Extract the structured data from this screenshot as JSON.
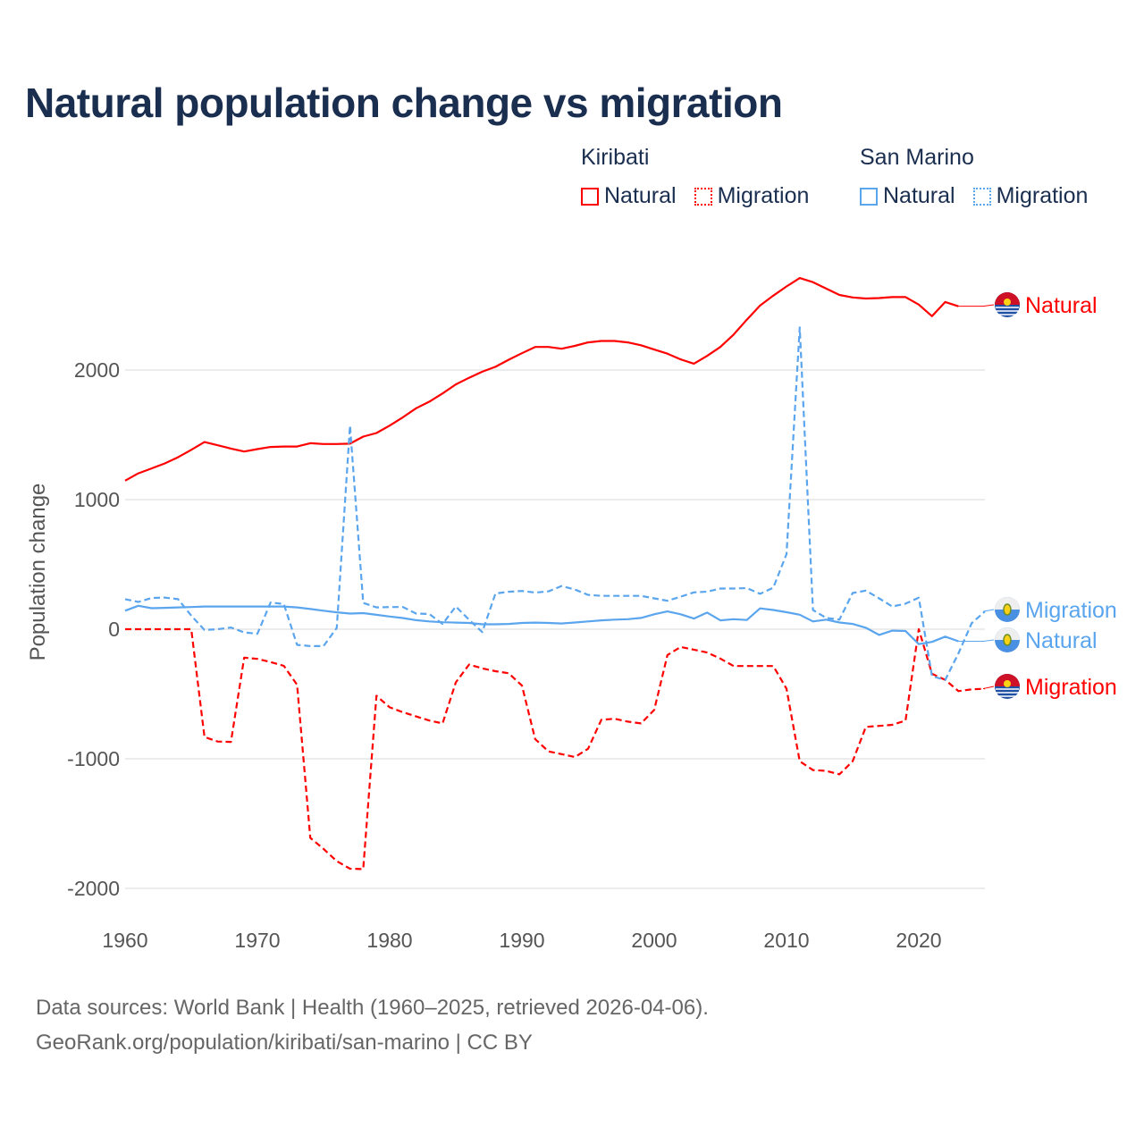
{
  "title": "Natural population change vs migration",
  "legend": {
    "groups": [
      {
        "name": "Kiribati",
        "items": [
          {
            "label": "Natural",
            "style": "solid",
            "color": "#ff0000"
          },
          {
            "label": "Migration",
            "style": "dotted",
            "color": "#ff0000"
          }
        ]
      },
      {
        "name": "San Marino",
        "items": [
          {
            "label": "Natural",
            "style": "solid",
            "color": "#5aa5ee"
          },
          {
            "label": "Migration",
            "style": "dotted",
            "color": "#5aa5ee"
          }
        ]
      }
    ]
  },
  "source": {
    "line1": "Data sources: World Bank | Health (1960–2025, retrieved 2026-04-06).",
    "line2": "GeoRank.org/population/kiribati/san-marino | CC BY"
  },
  "chart_data": {
    "type": "line",
    "title": "Natural population change vs migration",
    "xlabel": "",
    "ylabel": "Population change",
    "xlim": [
      1960,
      2025
    ],
    "ylim": [
      -2000,
      2700
    ],
    "xticks": [
      1960,
      1970,
      1980,
      1990,
      2000,
      2010,
      2020
    ],
    "yticks": [
      -2000,
      -1000,
      0,
      1000,
      2000
    ],
    "grid": true,
    "legend_position": "top-right",
    "series": [
      {
        "name": "Natural",
        "country": "Kiribati",
        "color": "#ff0000",
        "dash": false,
        "start": 1960,
        "values": [
          1146,
          1203,
          1241,
          1279,
          1327,
          1384,
          1444,
          1419,
          1394,
          1371,
          1390,
          1406,
          1410,
          1410,
          1435,
          1429,
          1429,
          1432,
          1486,
          1514,
          1571,
          1635,
          1705,
          1756,
          1819,
          1889,
          1940,
          1987,
          2025,
          2079,
          2130,
          2178,
          2178,
          2164,
          2186,
          2213,
          2224,
          2224,
          2213,
          2191,
          2158,
          2126,
          2082,
          2049,
          2109,
          2178,
          2273,
          2388,
          2497,
          2574,
          2645,
          2710,
          2678,
          2628,
          2579,
          2560,
          2552,
          2555,
          2563,
          2563,
          2505,
          2415,
          2525,
          2492
        ]
      },
      {
        "name": "Migration",
        "country": "Kiribati",
        "color": "#ff0000",
        "dash": true,
        "start": 1960,
        "values": [
          0,
          0,
          0,
          0,
          0,
          0,
          -832,
          -867,
          -870,
          -219,
          -229,
          -254,
          -283,
          -429,
          -1610,
          -1695,
          -1790,
          -1848,
          -1851,
          -514,
          -603,
          -641,
          -673,
          -705,
          -727,
          -410,
          -273,
          -302,
          -324,
          -340,
          -435,
          -848,
          -943,
          -964,
          -986,
          -923,
          -699,
          -691,
          -713,
          -727,
          -623,
          -199,
          -137,
          -158,
          -180,
          -227,
          -284,
          -284,
          -284,
          -284,
          -459,
          -1019,
          -1087,
          -1093,
          -1120,
          -1019,
          -754,
          -746,
          -738,
          -705,
          0,
          -344,
          -391,
          -478,
          -464,
          -459
        ]
      },
      {
        "name": "Natural",
        "country": "San Marino",
        "color": "#5aa5ee",
        "dash": false,
        "start": 1960,
        "values": [
          143,
          181,
          162,
          165,
          168,
          171,
          175,
          175,
          175,
          175,
          175,
          175,
          175,
          168,
          156,
          143,
          130,
          121,
          124,
          111,
          98,
          86,
          70,
          60,
          54,
          51,
          48,
          38,
          38,
          41,
          48,
          51,
          48,
          44,
          52,
          60,
          68,
          74,
          77,
          87,
          115,
          137,
          115,
          82,
          128,
          68,
          77,
          71,
          161,
          148,
          131,
          112,
          60,
          74,
          52,
          41,
          11,
          -44,
          -11,
          -14,
          -115,
          -98,
          -57,
          -93
        ]
      },
      {
        "name": "Migration",
        "country": "San Marino",
        "color": "#5aa5ee",
        "dash": true,
        "start": 1960,
        "values": [
          232,
          210,
          241,
          244,
          232,
          105,
          -6,
          0,
          13,
          -25,
          -35,
          206,
          194,
          -121,
          -130,
          -130,
          10,
          1571,
          203,
          168,
          171,
          171,
          121,
          117,
          41,
          175,
          73,
          -22,
          276,
          289,
          295,
          283,
          292,
          333,
          306,
          265,
          257,
          257,
          257,
          257,
          238,
          219,
          251,
          284,
          290,
          314,
          314,
          317,
          273,
          320,
          579,
          2328,
          148,
          87,
          74,
          279,
          298,
          238,
          175,
          197,
          243,
          -363,
          -391,
          -186,
          46,
          137
        ]
      }
    ],
    "end_labels": [
      "Natural",
      "Migration",
      "Natural",
      "Migration"
    ]
  }
}
